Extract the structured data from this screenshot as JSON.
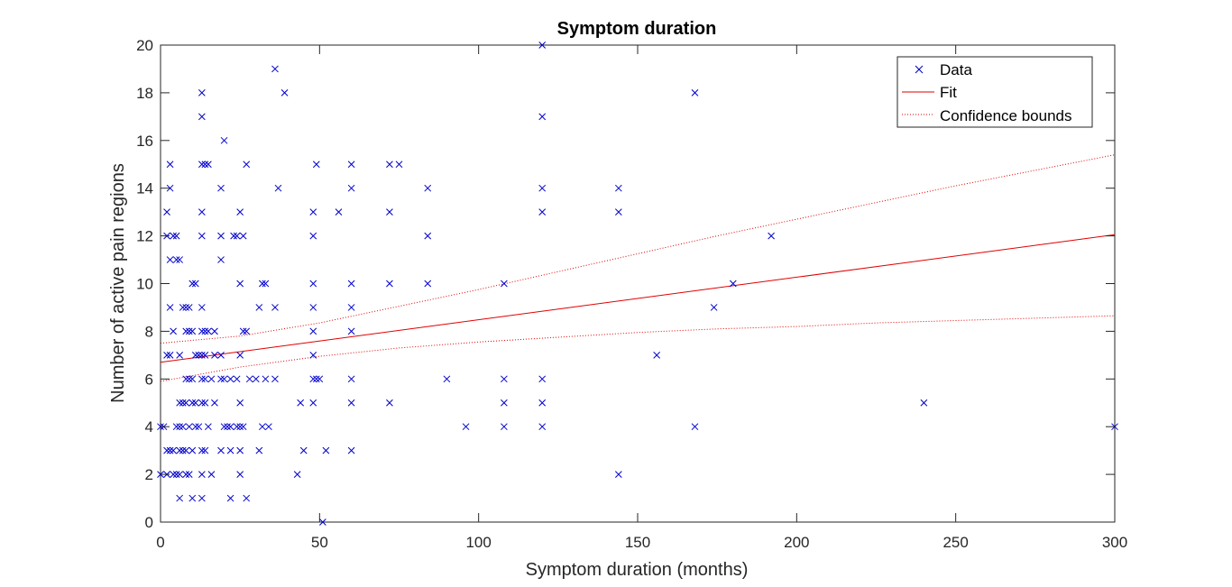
{
  "chart_data": {
    "type": "scatter",
    "title": "Symptom duration",
    "xlabel": "Symptom duration (months)",
    "ylabel": "Number of active pain regions",
    "xlim": [
      0,
      300
    ],
    "ylim": [
      0,
      20
    ],
    "xticks": [
      0,
      50,
      100,
      150,
      200,
      250,
      300
    ],
    "yticks": [
      0,
      2,
      4,
      6,
      8,
      10,
      12,
      14,
      16,
      18,
      20
    ],
    "grid": false,
    "legend_position": "top-right",
    "colors": {
      "data": "#0000cc",
      "fit": "#e00000",
      "bounds": "#e00000",
      "axes": "#262626"
    },
    "legend": [
      {
        "label": "Data",
        "style": "marker-x"
      },
      {
        "label": "Fit",
        "style": "solid"
      },
      {
        "label": "Confidence bounds",
        "style": "dotted"
      }
    ],
    "fit": {
      "x": [
        0,
        300
      ],
      "y": [
        6.7,
        12.05
      ]
    },
    "confidence_upper": {
      "x": [
        0,
        25,
        50,
        75,
        100,
        125,
        150,
        175,
        200,
        225,
        250,
        275,
        300
      ],
      "y": [
        7.5,
        7.8,
        8.35,
        9.05,
        9.75,
        10.5,
        11.25,
        12.0,
        12.7,
        13.4,
        14.1,
        14.75,
        15.4
      ]
    },
    "confidence_lower": {
      "x": [
        0,
        25,
        50,
        75,
        100,
        125,
        150,
        175,
        200,
        225,
        250,
        275,
        300
      ],
      "y": [
        5.9,
        6.5,
        6.95,
        7.3,
        7.55,
        7.75,
        7.95,
        8.1,
        8.2,
        8.35,
        8.45,
        8.55,
        8.65
      ]
    },
    "points": [
      [
        0,
        4
      ],
      [
        0,
        2
      ],
      [
        1,
        4
      ],
      [
        2,
        13
      ],
      [
        2,
        12
      ],
      [
        2,
        7
      ],
      [
        2,
        3
      ],
      [
        2,
        2
      ],
      [
        3,
        15
      ],
      [
        3,
        14
      ],
      [
        3,
        11
      ],
      [
        3,
        9
      ],
      [
        3,
        3
      ],
      [
        3,
        7
      ],
      [
        4,
        12
      ],
      [
        4,
        8
      ],
      [
        4,
        3
      ],
      [
        4,
        2
      ],
      [
        5,
        12
      ],
      [
        5,
        11
      ],
      [
        5,
        4
      ],
      [
        5,
        2
      ],
      [
        6,
        11
      ],
      [
        6,
        7
      ],
      [
        6,
        5
      ],
      [
        6,
        4
      ],
      [
        6,
        3
      ],
      [
        6,
        2
      ],
      [
        6,
        1
      ],
      [
        7,
        9
      ],
      [
        7,
        5
      ],
      [
        7,
        3
      ],
      [
        7,
        4
      ],
      [
        8,
        8
      ],
      [
        8,
        3
      ],
      [
        8,
        6
      ],
      [
        8,
        2
      ],
      [
        8,
        9
      ],
      [
        8,
        5
      ],
      [
        9,
        9
      ],
      [
        9,
        8
      ],
      [
        9,
        6
      ],
      [
        9,
        4
      ],
      [
        9,
        2
      ],
      [
        10,
        10
      ],
      [
        10,
        8
      ],
      [
        10,
        6
      ],
      [
        10,
        5
      ],
      [
        10,
        3
      ],
      [
        10,
        1
      ],
      [
        11,
        10
      ],
      [
        11,
        7
      ],
      [
        11,
        5
      ],
      [
        11,
        4
      ],
      [
        12,
        7
      ],
      [
        12,
        4
      ],
      [
        13,
        18
      ],
      [
        13,
        17
      ],
      [
        13,
        15
      ],
      [
        13,
        13
      ],
      [
        13,
        12
      ],
      [
        13,
        9
      ],
      [
        13,
        8
      ],
      [
        13,
        7
      ],
      [
        13,
        6
      ],
      [
        13,
        5
      ],
      [
        13,
        2
      ],
      [
        13,
        1
      ],
      [
        13,
        3
      ],
      [
        14,
        15
      ],
      [
        14,
        8
      ],
      [
        14,
        7
      ],
      [
        14,
        6
      ],
      [
        14,
        5
      ],
      [
        14,
        3
      ],
      [
        15,
        15
      ],
      [
        15,
        8
      ],
      [
        15,
        4
      ],
      [
        16,
        6
      ],
      [
        16,
        2
      ],
      [
        17,
        8
      ],
      [
        17,
        7
      ],
      [
        17,
        5
      ],
      [
        19,
        14
      ],
      [
        19,
        11
      ],
      [
        19,
        6
      ],
      [
        19,
        7
      ],
      [
        19,
        3
      ],
      [
        19,
        12
      ],
      [
        20,
        16
      ],
      [
        20,
        6
      ],
      [
        20,
        4
      ],
      [
        21,
        4
      ],
      [
        22,
        6
      ],
      [
        22,
        4
      ],
      [
        22,
        3
      ],
      [
        22,
        1
      ],
      [
        23,
        12
      ],
      [
        24,
        12
      ],
      [
        24,
        6
      ],
      [
        24,
        4
      ],
      [
        25,
        13
      ],
      [
        25,
        10
      ],
      [
        25,
        7
      ],
      [
        25,
        5
      ],
      [
        25,
        4
      ],
      [
        25,
        3
      ],
      [
        25,
        2
      ],
      [
        26,
        12
      ],
      [
        26,
        8
      ],
      [
        26,
        4
      ],
      [
        27,
        15
      ],
      [
        27,
        8
      ],
      [
        27,
        1
      ],
      [
        28,
        6
      ],
      [
        30,
        6
      ],
      [
        31,
        9
      ],
      [
        31,
        3
      ],
      [
        32,
        10
      ],
      [
        32,
        4
      ],
      [
        33,
        10
      ],
      [
        33,
        6
      ],
      [
        34,
        4
      ],
      [
        36,
        9
      ],
      [
        36,
        6
      ],
      [
        36,
        19
      ],
      [
        37,
        14
      ],
      [
        39,
        18
      ],
      [
        43,
        2
      ],
      [
        44,
        5
      ],
      [
        45,
        3
      ],
      [
        48,
        13
      ],
      [
        48,
        12
      ],
      [
        48,
        10
      ],
      [
        48,
        9
      ],
      [
        48,
        8
      ],
      [
        48,
        7
      ],
      [
        48,
        6
      ],
      [
        48,
        5
      ],
      [
        49,
        15
      ],
      [
        49,
        6
      ],
      [
        50,
        6
      ],
      [
        51,
        0
      ],
      [
        52,
        3
      ],
      [
        56,
        13
      ],
      [
        60,
        15
      ],
      [
        60,
        14
      ],
      [
        60,
        10
      ],
      [
        60,
        9
      ],
      [
        60,
        8
      ],
      [
        60,
        6
      ],
      [
        60,
        5
      ],
      [
        60,
        3
      ],
      [
        72,
        15
      ],
      [
        72,
        13
      ],
      [
        72,
        10
      ],
      [
        72,
        5
      ],
      [
        75,
        15
      ],
      [
        84,
        14
      ],
      [
        84,
        12
      ],
      [
        84,
        10
      ],
      [
        90,
        6
      ],
      [
        96,
        4
      ],
      [
        108,
        10
      ],
      [
        108,
        6
      ],
      [
        108,
        5
      ],
      [
        108,
        4
      ],
      [
        120,
        20
      ],
      [
        120,
        17
      ],
      [
        120,
        14
      ],
      [
        120,
        13
      ],
      [
        120,
        6
      ],
      [
        120,
        5
      ],
      [
        120,
        4
      ],
      [
        144,
        14
      ],
      [
        144,
        13
      ],
      [
        144,
        2
      ],
      [
        156,
        7
      ],
      [
        168,
        18
      ],
      [
        168,
        4
      ],
      [
        174,
        9
      ],
      [
        180,
        10
      ],
      [
        192,
        12
      ],
      [
        240,
        5
      ],
      [
        300,
        4
      ]
    ]
  }
}
